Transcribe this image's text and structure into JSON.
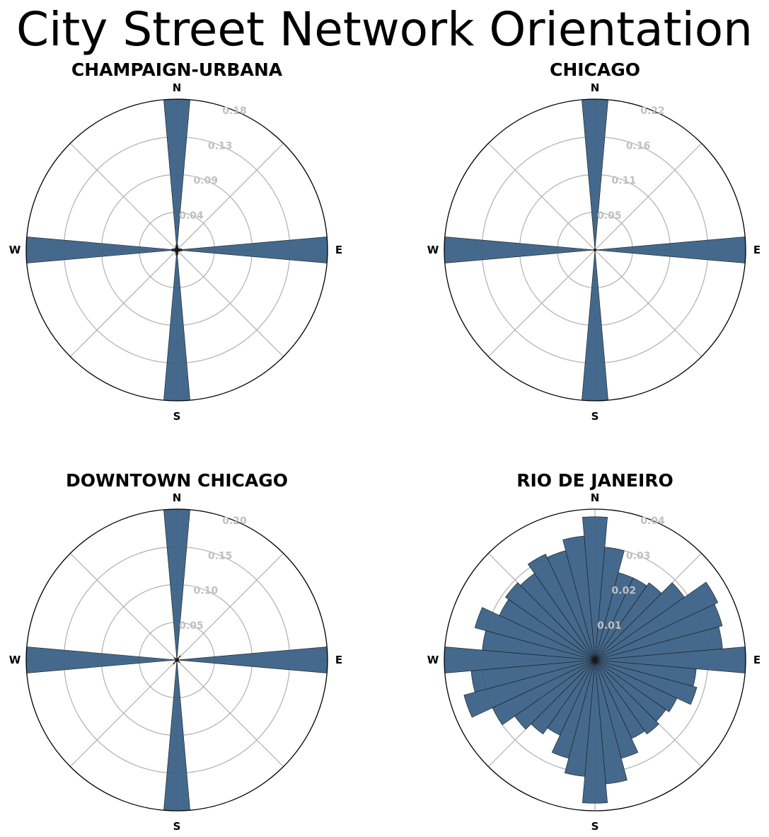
{
  "title": "City Street Network Orientation",
  "colors": {
    "bar_fill": "#3a6186",
    "bar_edge": "#1a1a1a",
    "grid": "#b0b0b0",
    "tick_label": "#c0c0c0"
  },
  "chart_data": [
    {
      "type": "polar-bar",
      "title": "CHAMPAIGN-URBANA",
      "theta_direction": "clockwise",
      "theta_zero": "N",
      "compass_labels": [
        "N",
        "E",
        "S",
        "W"
      ],
      "r_tick_labels": [
        "0.04",
        "0.09",
        "0.13",
        "0.18"
      ],
      "rmax": 0.178,
      "grid": true,
      "bins_deg": [
        0,
        10,
        20,
        30,
        40,
        50,
        60,
        70,
        80,
        90,
        100,
        110,
        120,
        130,
        140,
        150,
        160,
        170,
        180,
        190,
        200,
        210,
        220,
        230,
        240,
        250,
        260,
        270,
        280,
        290,
        300,
        310,
        320,
        330,
        340,
        350
      ],
      "values": [
        0.178,
        0.006,
        0.004,
        0.003,
        0.002,
        0.002,
        0.003,
        0.004,
        0.006,
        0.178,
        0.006,
        0.004,
        0.003,
        0.002,
        0.002,
        0.003,
        0.004,
        0.006,
        0.178,
        0.006,
        0.004,
        0.003,
        0.002,
        0.002,
        0.003,
        0.004,
        0.006,
        0.178,
        0.006,
        0.004,
        0.003,
        0.002,
        0.002,
        0.003,
        0.004,
        0.006
      ]
    },
    {
      "type": "polar-bar",
      "title": "CHICAGO",
      "theta_direction": "clockwise",
      "theta_zero": "N",
      "compass_labels": [
        "N",
        "E",
        "S",
        "W"
      ],
      "r_tick_labels": [
        "0.05",
        "0.11",
        "0.16",
        "0.22"
      ],
      "rmax": 0.218,
      "grid": true,
      "bins_deg": [
        0,
        10,
        20,
        30,
        40,
        50,
        60,
        70,
        80,
        90,
        100,
        110,
        120,
        130,
        140,
        150,
        160,
        170,
        180,
        190,
        200,
        210,
        220,
        230,
        240,
        250,
        260,
        270,
        280,
        290,
        300,
        310,
        320,
        330,
        340,
        350
      ],
      "values": [
        0.218,
        0.002,
        0.002,
        0.001,
        0.001,
        0.001,
        0.001,
        0.002,
        0.002,
        0.218,
        0.002,
        0.002,
        0.001,
        0.001,
        0.001,
        0.001,
        0.002,
        0.002,
        0.218,
        0.002,
        0.002,
        0.001,
        0.001,
        0.001,
        0.001,
        0.002,
        0.002,
        0.218,
        0.002,
        0.002,
        0.001,
        0.001,
        0.001,
        0.001,
        0.002,
        0.002
      ]
    },
    {
      "type": "polar-bar",
      "title": "DOWNTOWN CHICAGO",
      "theta_direction": "clockwise",
      "theta_zero": "N",
      "compass_labels": [
        "N",
        "E",
        "S",
        "W"
      ],
      "r_tick_labels": [
        "0.05",
        "0.10",
        "0.15",
        "0.20"
      ],
      "rmax": 0.2,
      "grid": true,
      "bins_deg": [
        0,
        10,
        20,
        30,
        40,
        50,
        60,
        70,
        80,
        90,
        100,
        110,
        120,
        130,
        140,
        150,
        160,
        170,
        180,
        190,
        200,
        210,
        220,
        230,
        240,
        250,
        260,
        270,
        280,
        290,
        300,
        310,
        320,
        330,
        340,
        350
      ],
      "values": [
        0.2,
        0.002,
        0.002,
        0.003,
        0.007,
        0.003,
        0.002,
        0.002,
        0.002,
        0.2,
        0.002,
        0.002,
        0.003,
        0.005,
        0.003,
        0.002,
        0.002,
        0.002,
        0.2,
        0.002,
        0.002,
        0.003,
        0.007,
        0.003,
        0.002,
        0.002,
        0.002,
        0.2,
        0.002,
        0.002,
        0.003,
        0.005,
        0.003,
        0.002,
        0.002,
        0.002
      ]
    },
    {
      "type": "polar-bar",
      "title": "RIO DE JANEIRO",
      "theta_direction": "clockwise",
      "theta_zero": "N",
      "compass_labels": [
        "N",
        "E",
        "S",
        "W"
      ],
      "r_tick_labels": [
        "0.01",
        "0.02",
        "0.03",
        "0.04"
      ],
      "rmax": 0.04,
      "grid": true,
      "bins_deg": [
        0,
        10,
        20,
        30,
        40,
        50,
        60,
        70,
        80,
        90,
        100,
        110,
        120,
        130,
        140,
        150,
        160,
        170,
        180,
        190,
        200,
        210,
        220,
        230,
        240,
        250,
        260,
        270,
        280,
        290,
        300,
        310,
        320,
        330,
        340,
        350
      ],
      "values": [
        0.038,
        0.03,
        0.024,
        0.024,
        0.025,
        0.029,
        0.036,
        0.035,
        0.034,
        0.04,
        0.027,
        0.028,
        0.024,
        0.023,
        0.024,
        0.023,
        0.027,
        0.033,
        0.038,
        0.031,
        0.027,
        0.022,
        0.024,
        0.026,
        0.03,
        0.036,
        0.033,
        0.04,
        0.03,
        0.033,
        0.028,
        0.029,
        0.028,
        0.031,
        0.03,
        0.033
      ]
    }
  ]
}
